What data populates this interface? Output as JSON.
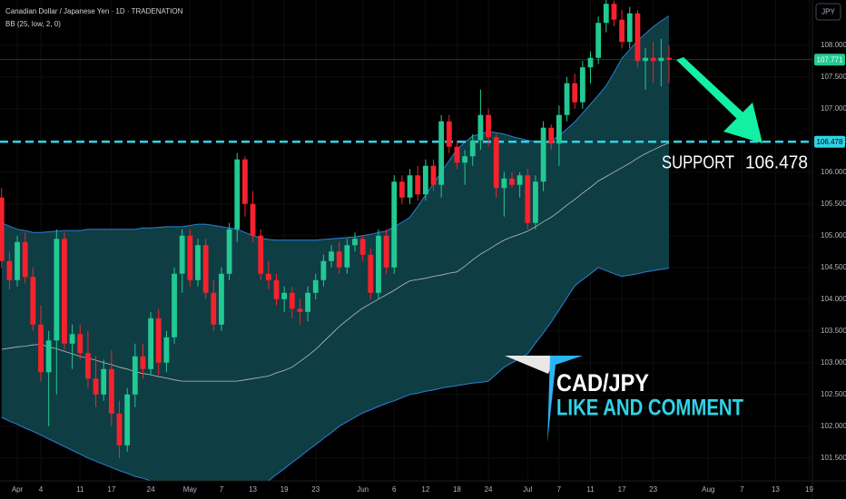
{
  "chart_data": {
    "type": "candlestick",
    "title": "Canadian Dollar / Japanese Yen · 1D · TRADENATION",
    "indicator_label": "BB (25, low, 2, 0)",
    "currency": "JPY",
    "support_label": "SUPPORT",
    "support_level": 106.478,
    "logo_title": "CAD/JPY",
    "logo_text": "LIKE AND COMMENT",
    "colors": {
      "up": "#22c993",
      "down": "#f5222d",
      "band_fill": "#0f3d44",
      "band_line": "#2a7fd4",
      "basis": "#b8bcc4",
      "support": "#2fd3e6",
      "arrow": "#14f0a3"
    },
    "ylim": [
      101.14,
      108.71
    ],
    "yticks": [
      {
        "value": 108,
        "label": "108.000"
      },
      {
        "value": 107.5,
        "label": "107.500"
      },
      {
        "value": 107,
        "label": "107.000"
      },
      {
        "value": 106.5,
        "label": "106.500"
      },
      {
        "value": 106,
        "label": "106.000"
      },
      {
        "value": 105.5,
        "label": "105.500"
      },
      {
        "value": 105,
        "label": "105.000"
      },
      {
        "value": 104.5,
        "label": "104.500"
      },
      {
        "value": 104,
        "label": "104.000"
      },
      {
        "value": 103.5,
        "label": "103.500"
      },
      {
        "value": 103,
        "label": "103.000"
      },
      {
        "value": 102.5,
        "label": "102.500"
      },
      {
        "value": 102,
        "label": "102.000"
      },
      {
        "value": 101.5,
        "label": "101.500"
      }
    ],
    "xticks": [
      {
        "value": "Apr 1",
        "label": "Apr"
      },
      {
        "value": "Apr 4",
        "label": "4"
      },
      {
        "value": "Apr 11",
        "label": "11"
      },
      {
        "value": "Apr 17",
        "label": "17"
      },
      {
        "value": "Apr 24",
        "label": "24"
      },
      {
        "value": "May 1",
        "label": "May"
      },
      {
        "value": "May 7",
        "label": "7"
      },
      {
        "value": "May 13",
        "label": "13"
      },
      {
        "value": "May 19",
        "label": "19"
      },
      {
        "value": "May 23",
        "label": "23"
      },
      {
        "value": "Jun 2",
        "label": "Jun"
      },
      {
        "value": "Jun 6",
        "label": "6"
      },
      {
        "value": "Jun 12",
        "label": "12"
      },
      {
        "value": "Jun 18",
        "label": "18"
      },
      {
        "value": "Jun 24",
        "label": "24"
      },
      {
        "value": "Jul 1",
        "label": "Jul"
      },
      {
        "value": "Jul 7",
        "label": "7"
      },
      {
        "value": "Jul 11",
        "label": "11"
      },
      {
        "value": "Jul 17",
        "label": "17"
      },
      {
        "value": "Jul 23",
        "label": "23"
      },
      {
        "value": "Aug 1",
        "label": "Aug"
      },
      {
        "value": "Aug 7",
        "label": "7"
      },
      {
        "value": "Aug 13",
        "label": "13"
      },
      {
        "value": "Aug 19",
        "label": "19"
      }
    ],
    "x": [
      "Mar 28",
      "Mar 31",
      "Apr 1",
      "Apr 2",
      "Apr 3",
      "Apr 4",
      "Apr 7",
      "Apr 8",
      "Apr 9",
      "Apr 10",
      "Apr 11",
      "Apr 14",
      "Apr 15",
      "Apr 16",
      "Apr 17",
      "Apr 18",
      "Apr 21",
      "Apr 22",
      "Apr 23",
      "Apr 24",
      "Apr 25",
      "Apr 28",
      "Apr 29",
      "Apr 30",
      "May 1",
      "May 2",
      "May 5",
      "May 6",
      "May 7",
      "May 8",
      "May 9",
      "May 12",
      "May 13",
      "May 14",
      "May 15",
      "May 16",
      "May 19",
      "May 20",
      "May 21",
      "May 22",
      "May 23",
      "May 26",
      "May 27",
      "May 28",
      "May 29",
      "May 30",
      "Jun 2",
      "Jun 3",
      "Jun 4",
      "Jun 5",
      "Jun 6",
      "Jun 9",
      "Jun 10",
      "Jun 11",
      "Jun 12",
      "Jun 13",
      "Jun 16",
      "Jun 17",
      "Jun 18",
      "Jun 19",
      "Jun 20",
      "Jun 23",
      "Jun 24",
      "Jun 25",
      "Jun 26",
      "Jun 27",
      "Jun 30",
      "Jul 1",
      "Jul 2",
      "Jul 3",
      "Jul 4",
      "Jul 7",
      "Jul 8",
      "Jul 9",
      "Jul 10",
      "Jul 11",
      "Jul 14",
      "Jul 15",
      "Jul 16",
      "Jul 17",
      "Jul 18",
      "Jul 21",
      "Jul 22",
      "Jul 23",
      "Jul 24",
      "Jul 25"
    ],
    "open": [
      105.6,
      104.6,
      104.3,
      104.9,
      104.35,
      103.6,
      102.85,
      103.35,
      104.95,
      103.3,
      103.45,
      103.15,
      102.75,
      102.5,
      102.9,
      102.2,
      101.7,
      102.5,
      103.1,
      102.9,
      103.7,
      103.0,
      103.4,
      104.4,
      105.0,
      104.3,
      104.85,
      104.1,
      103.6,
      104.4,
      105.1,
      106.2,
      105.5,
      105.0,
      104.4,
      104.3,
      104.0,
      104.1,
      103.85,
      103.8,
      104.1,
      104.3,
      104.6,
      104.75,
      104.5,
      104.85,
      104.95,
      104.7,
      104.1,
      105.0,
      104.5,
      105.85,
      105.6,
      105.95,
      105.65,
      106.1,
      105.8,
      106.8,
      106.4,
      106.15,
      106.25,
      106.5,
      106.9,
      106.55,
      105.75,
      105.9,
      105.8,
      105.95,
      105.2,
      105.85,
      106.7,
      106.45,
      106.9,
      107.4,
      107.1,
      107.65,
      107.8,
      108.35,
      108.65,
      108.4,
      108.05,
      108.5,
      107.75,
      107.8,
      107.75,
      107.8
    ],
    "high": [
      105.75,
      104.75,
      105.0,
      105.05,
      104.5,
      103.9,
      103.5,
      105.1,
      105.05,
      103.6,
      103.6,
      103.5,
      103.1,
      103.05,
      103.2,
      102.4,
      102.6,
      103.3,
      103.3,
      103.8,
      103.85,
      103.5,
      104.5,
      105.1,
      105.1,
      104.95,
      104.95,
      104.3,
      104.5,
      105.2,
      106.3,
      106.25,
      105.7,
      105.1,
      104.6,
      104.4,
      104.2,
      104.2,
      104.0,
      104.2,
      104.4,
      104.7,
      104.85,
      104.9,
      104.95,
      105.05,
      105.0,
      104.8,
      105.1,
      105.1,
      105.95,
      105.95,
      106.05,
      106.1,
      106.2,
      106.2,
      106.9,
      106.9,
      106.5,
      106.35,
      106.6,
      107.3,
      107.0,
      106.6,
      106.0,
      106.0,
      106.0,
      106.05,
      105.95,
      106.8,
      106.75,
      107.05,
      107.5,
      107.55,
      107.75,
      107.9,
      108.45,
      108.75,
      108.7,
      108.55,
      108.6,
      108.55,
      107.95,
      108.05,
      108.1,
      108.0
    ],
    "low": [
      104.5,
      104.15,
      104.2,
      104.25,
      103.5,
      102.7,
      102.0,
      102.5,
      103.2,
      102.9,
      103.05,
      102.6,
      102.3,
      102.4,
      102.0,
      101.5,
      101.6,
      102.3,
      102.75,
      102.8,
      102.8,
      102.85,
      103.3,
      104.1,
      104.2,
      104.2,
      104.0,
      103.5,
      103.5,
      104.3,
      104.9,
      105.3,
      104.9,
      104.3,
      104.15,
      103.9,
      103.8,
      103.7,
      103.6,
      103.65,
      104.0,
      104.2,
      104.5,
      104.4,
      104.4,
      104.75,
      104.6,
      104.0,
      104.0,
      104.4,
      104.4,
      105.5,
      105.5,
      105.55,
      105.55,
      105.7,
      105.6,
      106.3,
      106.05,
      105.8,
      106.1,
      106.35,
      106.4,
      105.6,
      105.3,
      105.75,
      105.6,
      105.1,
      105.1,
      105.7,
      106.35,
      106.1,
      106.8,
      107.0,
      107.0,
      107.4,
      107.7,
      108.2,
      108.3,
      107.95,
      107.95,
      107.65,
      107.3,
      107.4,
      107.35,
      107.4
    ],
    "close": [
      104.6,
      104.3,
      104.9,
      104.35,
      103.6,
      102.85,
      103.35,
      104.95,
      103.3,
      103.45,
      103.15,
      102.75,
      102.5,
      102.9,
      102.2,
      101.7,
      102.5,
      103.1,
      102.9,
      103.7,
      103.0,
      103.4,
      104.4,
      105.0,
      104.3,
      104.85,
      104.1,
      103.6,
      104.4,
      105.1,
      106.2,
      105.5,
      105.0,
      104.4,
      104.3,
      104.0,
      104.1,
      103.85,
      103.8,
      104.1,
      104.3,
      104.6,
      104.75,
      104.5,
      104.85,
      104.95,
      104.7,
      104.1,
      105.0,
      104.5,
      105.85,
      105.6,
      105.95,
      105.65,
      106.1,
      105.8,
      106.8,
      106.4,
      106.15,
      106.25,
      106.5,
      106.9,
      106.55,
      105.75,
      105.9,
      105.8,
      105.95,
      105.2,
      105.85,
      106.7,
      106.45,
      106.9,
      107.4,
      107.1,
      107.65,
      107.8,
      108.35,
      108.65,
      108.4,
      108.05,
      108.5,
      107.75,
      107.8,
      107.75,
      107.8,
      107.771
    ],
    "bb_upper": [
      105.2,
      105.15,
      105.1,
      105.08,
      105.05,
      105.05,
      105.06,
      105.07,
      105.08,
      105.08,
      105.08,
      105.1,
      105.1,
      105.1,
      105.1,
      105.1,
      105.1,
      105.1,
      105.12,
      105.12,
      105.13,
      105.14,
      105.14,
      105.14,
      105.16,
      105.18,
      105.18,
      105.16,
      105.14,
      105.12,
      105.1,
      105.05,
      105.0,
      104.96,
      104.94,
      104.93,
      104.93,
      104.93,
      104.93,
      104.93,
      104.93,
      104.94,
      104.95,
      104.96,
      104.97,
      104.98,
      105.0,
      105.02,
      105.05,
      105.07,
      105.14,
      105.21,
      105.29,
      105.46,
      105.64,
      105.82,
      106.0,
      106.18,
      106.36,
      106.47,
      106.57,
      106.6,
      106.64,
      106.62,
      106.6,
      106.56,
      106.53,
      106.5,
      106.48,
      106.46,
      106.5,
      106.57,
      106.68,
      106.79,
      106.93,
      107.07,
      107.21,
      107.36,
      107.57,
      107.79,
      107.93,
      108.07,
      108.18,
      108.29,
      108.38,
      108.46
    ],
    "bb_basis": [
      103.21,
      103.23,
      103.25,
      103.26,
      103.28,
      103.29,
      103.25,
      103.22,
      103.18,
      103.14,
      103.1,
      103.07,
      103.04,
      103.0,
      102.97,
      102.93,
      102.9,
      102.86,
      102.83,
      102.81,
      102.78,
      102.76,
      102.73,
      102.71,
      102.71,
      102.71,
      102.71,
      102.71,
      102.71,
      102.71,
      102.71,
      102.73,
      102.75,
      102.77,
      102.79,
      102.84,
      102.88,
      102.93,
      103.02,
      103.11,
      103.21,
      103.33,
      103.45,
      103.57,
      103.67,
      103.77,
      103.86,
      103.93,
      104.0,
      104.07,
      104.14,
      104.22,
      104.29,
      104.31,
      104.33,
      104.36,
      104.38,
      104.41,
      104.43,
      104.52,
      104.62,
      104.71,
      104.78,
      104.86,
      104.93,
      104.98,
      105.02,
      105.07,
      105.14,
      105.22,
      105.29,
      105.38,
      105.48,
      105.57,
      105.67,
      105.76,
      105.86,
      105.93,
      106.0,
      106.07,
      106.14,
      106.22,
      106.29,
      106.35,
      106.41,
      106.46
    ],
    "bb_lower": [
      102.14,
      102.08,
      102.03,
      101.97,
      101.92,
      101.86,
      101.8,
      101.74,
      101.68,
      101.62,
      101.56,
      101.5,
      101.45,
      101.4,
      101.35,
      101.3,
      101.26,
      101.21,
      101.18,
      101.14,
      101.11,
      101.07,
      101.04,
      101.0,
      100.99,
      100.98,
      100.96,
      100.95,
      100.94,
      100.93,
      100.97,
      101.01,
      101.05,
      101.1,
      101.14,
      101.24,
      101.33,
      101.43,
      101.52,
      101.62,
      101.71,
      101.81,
      101.9,
      102.0,
      102.07,
      102.14,
      102.21,
      102.26,
      102.31,
      102.36,
      102.4,
      102.45,
      102.5,
      102.52,
      102.55,
      102.57,
      102.6,
      102.62,
      102.64,
      102.66,
      102.68,
      102.69,
      102.71,
      102.82,
      102.93,
      103.0,
      103.07,
      103.14,
      103.31,
      103.47,
      103.64,
      103.83,
      104.02,
      104.21,
      104.31,
      104.4,
      104.5,
      104.45,
      104.4,
      104.36,
      104.38,
      104.4,
      104.43,
      104.45,
      104.47,
      104.49
    ]
  }
}
